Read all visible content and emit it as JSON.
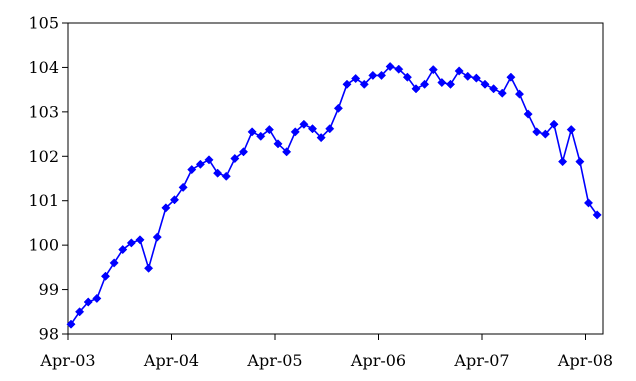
{
  "chart_data": {
    "type": "line",
    "title": "",
    "xlabel": "",
    "ylabel": "",
    "x_tick_labels": [
      "Apr-03",
      "Apr-04",
      "Apr-05",
      "Apr-06",
      "Apr-07",
      "Apr-08"
    ],
    "y_tick_labels": [
      "98",
      "99",
      "100",
      "101",
      "102",
      "103",
      "104",
      "105"
    ],
    "ylim": [
      98,
      105
    ],
    "grid": false,
    "legend": "none",
    "series": [
      {
        "color": "#0000ff",
        "marker": "diamond",
        "x_start": "Apr-03",
        "x_end": "Jun-08",
        "x_step": "month",
        "values": [
          98.22,
          98.5,
          98.72,
          98.8,
          99.3,
          99.6,
          99.9,
          100.05,
          100.12,
          99.48,
          100.18,
          100.84,
          101.02,
          101.3,
          101.7,
          101.82,
          101.92,
          101.62,
          101.55,
          101.95,
          102.1,
          102.55,
          102.45,
          102.6,
          102.28,
          102.1,
          102.55,
          102.72,
          102.62,
          102.42,
          102.62,
          103.08,
          103.62,
          103.75,
          103.62,
          103.82,
          103.82,
          104.02,
          103.96,
          103.78,
          103.52,
          103.62,
          103.95,
          103.66,
          103.62,
          103.92,
          103.8,
          103.76,
          103.62,
          103.52,
          103.42,
          103.78,
          103.4,
          102.95,
          102.55,
          102.5,
          102.72,
          101.88,
          102.6,
          101.88,
          100.95,
          100.68
        ]
      }
    ]
  }
}
